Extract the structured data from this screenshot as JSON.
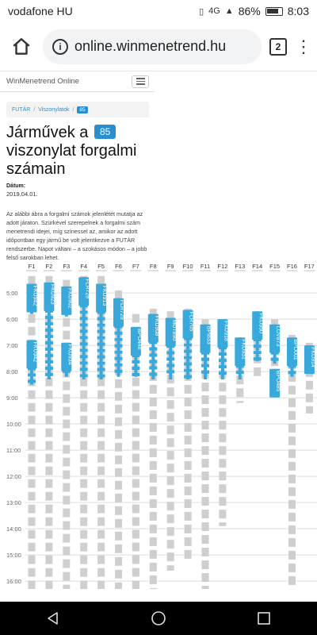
{
  "status_bar": {
    "carrier": "vodafone HU",
    "network": "4G",
    "battery": "86%",
    "time": "8:03"
  },
  "browser": {
    "url": "online.winmenetrend.hu",
    "tab_count": "2"
  },
  "site": {
    "title": "WinMenetrend Online"
  },
  "breadcrumb": {
    "items": [
      "FUTÁR",
      "Viszonylatok"
    ],
    "badge": "85"
  },
  "page": {
    "title_before": "Járművek a",
    "route_badge": "85",
    "title_after": "viszonylat forgalmi számain",
    "date_label": "Dátum:",
    "date_value": "2019.04.01.",
    "description": "Az alábbi ábra a forgalmi számok jelenlétét mutatja az adott járaton. Szürkével szerepelnek a forgalmi szám menetrendi idejei, míg színessel az, amikor az adott időpontban egy jármű be volt jelentkezve a FUTÁR rendszerbe. Napot váltani – a szokásos módon – a jobb felső sarokban lehet."
  },
  "chart_data": {
    "type": "timeline",
    "columns": [
      "F1",
      "F2",
      "F3",
      "F4",
      "F5",
      "F6",
      "F7",
      "F8",
      "F9",
      "F10",
      "F11",
      "F12",
      "F13",
      "F14",
      "F15",
      "F16",
      "F17"
    ],
    "time_ticks": [
      "5:00",
      "6:00",
      "7:00",
      "8:00",
      "9:00",
      "10:00",
      "11:00",
      "12:00",
      "13:00",
      "14:00",
      "15:00",
      "16:00"
    ],
    "y_range_hours": [
      4.3,
      16.3
    ],
    "colors": {
      "active": "#39a9dc",
      "scheduled": "#cfcfcf",
      "label_text": "#ffffff",
      "grid": "#dddddd"
    },
    "scheduled_ranges": [
      [
        4.35,
        16.3
      ],
      [
        4.35,
        16.3
      ],
      [
        4.5,
        16.3
      ],
      [
        4.35,
        16.3
      ],
      [
        4.35,
        16.3
      ],
      [
        4.9,
        16.3
      ],
      [
        5.8,
        16.3
      ],
      [
        5.6,
        16.3
      ],
      [
        5.7,
        15.6
      ],
      [
        5.6,
        15.2
      ],
      [
        6.0,
        16.3
      ],
      [
        6.0,
        13.9
      ],
      [
        6.7,
        9.2
      ],
      [
        5.9,
        8.3
      ],
      [
        6.0,
        8.3
      ],
      [
        6.6,
        16.3
      ],
      [
        6.9,
        9.6
      ]
    ],
    "active_blocks": [
      {
        "col": 0,
        "start": 4.65,
        "end": 5.8,
        "label": "FKU942"
      },
      {
        "col": 0,
        "start": 6.8,
        "end": 8.5,
        "label": "FKU942"
      },
      {
        "col": 1,
        "start": 4.6,
        "end": 8.3,
        "label": "FKU923"
      },
      {
        "col": 2,
        "start": 4.75,
        "end": 5.9,
        "label": "FKU902"
      },
      {
        "col": 2,
        "start": 6.9,
        "end": 8.2,
        "label": "FKU934"
      },
      {
        "col": 3,
        "start": 4.4,
        "end": 8.3,
        "label": "FLR726"
      },
      {
        "col": 4,
        "start": 4.65,
        "end": 8.3,
        "label": "FKU913"
      },
      {
        "col": 5,
        "start": 5.2,
        "end": 8.2,
        "label": "FLR729"
      },
      {
        "col": 6,
        "start": 6.3,
        "end": 8.2,
        "label": "BPO448"
      },
      {
        "col": 7,
        "start": 5.8,
        "end": 8.3,
        "label": "FKU908"
      },
      {
        "col": 8,
        "start": 5.95,
        "end": 8.3,
        "label": "MUT890"
      },
      {
        "col": 9,
        "start": 5.65,
        "end": 8.3,
        "label": "FLR705"
      },
      {
        "col": 10,
        "start": 6.2,
        "end": 8.3,
        "label": "BPI833"
      },
      {
        "col": 11,
        "start": 6.0,
        "end": 8.3,
        "label": "FKU918"
      },
      {
        "col": 12,
        "start": 6.7,
        "end": 8.3,
        "label": "FKU931"
      },
      {
        "col": 13,
        "start": 5.7,
        "end": 7.6,
        "label": "FKU950"
      },
      {
        "col": 14,
        "start": 6.2,
        "end": 7.7,
        "label": "LOV873"
      },
      {
        "col": 14,
        "start": 7.9,
        "end": 8.8,
        "label": "BPO485"
      },
      {
        "col": 15,
        "start": 6.7,
        "end": 8.2,
        "label": "BPO001"
      },
      {
        "col": 16,
        "start": 7.0,
        "end": 8.0,
        "label": "FKU914"
      }
    ]
  },
  "nav_bar": {
    "back_icon": "back-icon",
    "home_icon": "home-icon",
    "recents_icon": "recents-icon"
  }
}
